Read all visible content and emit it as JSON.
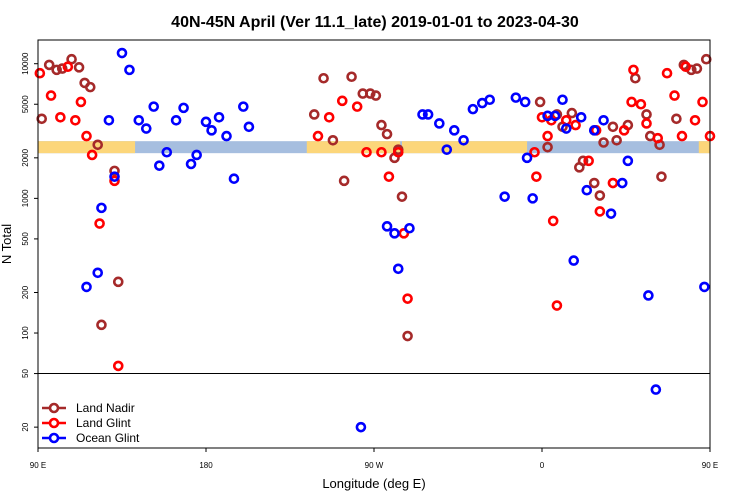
{
  "chart_data": {
    "type": "scatter",
    "title": "40N-45N April (Ver 11.1_late)   2019-01-01 to 2023-04-30",
    "xlabel": "Longitude (deg E)",
    "ylabel": "N Total",
    "x_scale": "longitude",
    "xlim": [
      90,
      450
    ],
    "x_ticks": [
      {
        "value": 90,
        "label": "90 E"
      },
      {
        "value": 180,
        "label": "180"
      },
      {
        "value": 270,
        "label": "90 W"
      },
      {
        "value": 360,
        "label": "0"
      },
      {
        "value": 450,
        "label": "90 E"
      },
      {
        "value": 540,
        "label": "180"
      }
    ],
    "y_scale": "log",
    "y_ticks": [
      {
        "value": 20,
        "label": "20"
      },
      {
        "value": 50,
        "label": "50"
      },
      {
        "value": 100,
        "label": "100"
      },
      {
        "value": 200,
        "label": "200"
      },
      {
        "value": 500,
        "label": "500"
      },
      {
        "value": 1000,
        "label": "1000"
      },
      {
        "value": 2000,
        "label": "2000"
      },
      {
        "value": 5000,
        "label": "5000"
      },
      {
        "value": 10000,
        "label": "10000"
      }
    ],
    "legend_position": "bottom-left",
    "land_ocean_strip": {
      "y_value": 2400,
      "land_color": "#fcd67a",
      "ocean_color": "#a6bedf",
      "land_ranges": [
        [
          90,
          142
        ],
        [
          234,
          284
        ],
        [
          285,
          352
        ],
        [
          444,
          502
        ],
        [
          517,
          532
        ]
      ]
    },
    "series": [
      {
        "name": "Land Nadir",
        "color": "#a52a2a",
        "points": [
          [
            92,
            3900
          ],
          [
            96,
            9800
          ],
          [
            100,
            9000
          ],
          [
            103,
            9200
          ],
          [
            108,
            10800
          ],
          [
            112,
            9400
          ],
          [
            115,
            7200
          ],
          [
            118,
            6700
          ],
          [
            122,
            2500
          ],
          [
            124,
            115
          ],
          [
            131,
            1600
          ],
          [
            133,
            240
          ],
          [
            238,
            4200
          ],
          [
            243,
            7800
          ],
          [
            248,
            2700
          ],
          [
            254,
            1350
          ],
          [
            258,
            8000
          ],
          [
            264,
            6000
          ],
          [
            268,
            6000
          ],
          [
            271,
            5800
          ],
          [
            274,
            3500
          ],
          [
            277,
            3000
          ],
          [
            281,
            2000
          ],
          [
            283,
            2300
          ],
          [
            285,
            1030
          ],
          [
            288,
            95
          ],
          [
            359,
            5200
          ],
          [
            363,
            2400
          ],
          [
            368,
            4200
          ],
          [
            371,
            3400
          ],
          [
            376,
            4300
          ],
          [
            380,
            1700
          ],
          [
            382,
            1900
          ],
          [
            388,
            1300
          ],
          [
            391,
            1050
          ],
          [
            393,
            2600
          ],
          [
            398,
            3400
          ],
          [
            400,
            2700
          ],
          [
            406,
            3500
          ],
          [
            410,
            7800
          ],
          [
            416,
            4200
          ],
          [
            418,
            2900
          ],
          [
            423,
            2500
          ],
          [
            424,
            1450
          ],
          [
            432,
            3900
          ],
          [
            436,
            9800
          ],
          [
            440,
            9000
          ],
          [
            443,
            9200
          ],
          [
            448,
            10800
          ],
          [
            452,
            9400
          ],
          [
            455,
            7200
          ],
          [
            458,
            6700
          ],
          [
            462,
            2500
          ],
          [
            464,
            115
          ],
          [
            471,
            1600
          ],
          [
            473,
            240
          ]
        ]
      },
      {
        "name": "Land Glint",
        "color": "#ff0000",
        "points": [
          [
            91,
            8500
          ],
          [
            97,
            5800
          ],
          [
            102,
            4000
          ],
          [
            106,
            9500
          ],
          [
            110,
            3800
          ],
          [
            113,
            5200
          ],
          [
            116,
            2900
          ],
          [
            119,
            2100
          ],
          [
            123,
            650
          ],
          [
            131,
            1350
          ],
          [
            133,
            57
          ],
          [
            240,
            2900
          ],
          [
            246,
            4000
          ],
          [
            253,
            5300
          ],
          [
            261,
            4800
          ],
          [
            266,
            2200
          ],
          [
            274,
            2200
          ],
          [
            278,
            1450
          ],
          [
            283,
            2200
          ],
          [
            286,
            550
          ],
          [
            288,
            180
          ],
          [
            356,
            2200
          ],
          [
            357,
            1450
          ],
          [
            360,
            4000
          ],
          [
            363,
            2900
          ],
          [
            365,
            3800
          ],
          [
            366,
            680
          ],
          [
            368,
            160
          ],
          [
            373,
            3800
          ],
          [
            378,
            3500
          ],
          [
            385,
            1900
          ],
          [
            389,
            3200
          ],
          [
            391,
            800
          ],
          [
            398,
            1300
          ],
          [
            404,
            3200
          ],
          [
            408,
            5200
          ],
          [
            409,
            9000
          ],
          [
            413,
            5000
          ],
          [
            416,
            3600
          ],
          [
            422,
            2800
          ],
          [
            427,
            8500
          ],
          [
            431,
            5800
          ],
          [
            435,
            2900
          ],
          [
            437,
            9500
          ],
          [
            442,
            3800
          ],
          [
            446,
            5200
          ],
          [
            450,
            2900
          ],
          [
            453,
            2100
          ],
          [
            457,
            650
          ],
          [
            471,
            1350
          ],
          [
            473,
            57
          ]
        ]
      },
      {
        "name": "Ocean Glint",
        "color": "#0000ff",
        "points": [
          [
            116,
            220
          ],
          [
            122,
            280
          ],
          [
            124,
            850
          ],
          [
            128,
            3800
          ],
          [
            131,
            1450
          ],
          [
            135,
            12000
          ],
          [
            139,
            9000
          ],
          [
            144,
            3800
          ],
          [
            148,
            3300
          ],
          [
            152,
            4800
          ],
          [
            155,
            1750
          ],
          [
            159,
            2200
          ],
          [
            164,
            3800
          ],
          [
            168,
            4700
          ],
          [
            172,
            1800
          ],
          [
            175,
            2100
          ],
          [
            180,
            3700
          ],
          [
            183,
            3200
          ],
          [
            187,
            4000
          ],
          [
            191,
            2900
          ],
          [
            195,
            1400
          ],
          [
            200,
            4800
          ],
          [
            203,
            3400
          ],
          [
            263,
            20
          ],
          [
            277,
            620
          ],
          [
            281,
            550
          ],
          [
            283,
            300
          ],
          [
            289,
            600
          ],
          [
            296,
            4200
          ],
          [
            299,
            4200
          ],
          [
            305,
            3600
          ],
          [
            309,
            2300
          ],
          [
            313,
            3200
          ],
          [
            318,
            2700
          ],
          [
            323,
            4600
          ],
          [
            328,
            5100
          ],
          [
            332,
            5400
          ],
          [
            340,
            1030
          ],
          [
            346,
            5600
          ],
          [
            351,
            5200
          ],
          [
            352,
            2000
          ],
          [
            355,
            1000
          ],
          [
            363,
            4100
          ],
          [
            367,
            4100
          ],
          [
            371,
            5400
          ],
          [
            373,
            3300
          ],
          [
            377,
            345
          ],
          [
            381,
            4000
          ],
          [
            384,
            1150
          ],
          [
            388,
            3200
          ],
          [
            393,
            3800
          ],
          [
            397,
            770
          ],
          [
            403,
            1300
          ],
          [
            406,
            1900
          ],
          [
            417,
            190
          ],
          [
            421,
            38
          ],
          [
            447,
            220
          ],
          [
            452,
            280
          ],
          [
            454,
            850
          ],
          [
            458,
            3800
          ],
          [
            461,
            1450
          ],
          [
            463,
            12000
          ],
          [
            466,
            9000
          ],
          [
            470,
            3800
          ],
          [
            474,
            3300
          ],
          [
            476,
            4800
          ],
          [
            479,
            1750
          ],
          [
            483,
            2200
          ]
        ]
      }
    ]
  }
}
